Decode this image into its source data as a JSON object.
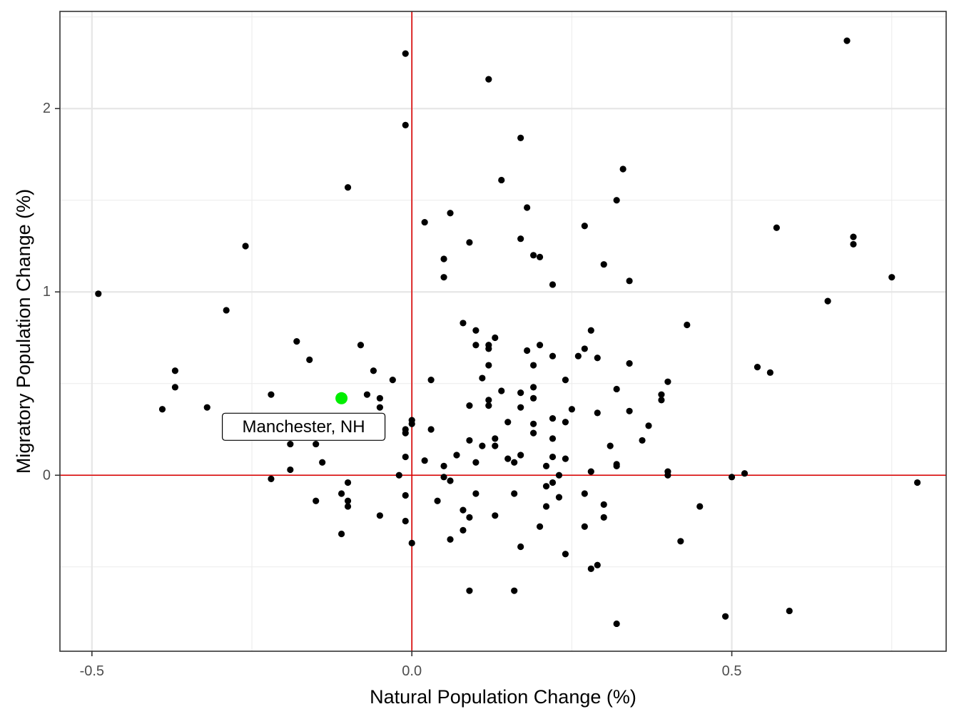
{
  "chart_data": {
    "type": "scatter",
    "xlabel": "Natural Population Change (%)",
    "ylabel": "Migratory Population Change (%)",
    "xlim": [
      -0.55,
      0.835
    ],
    "ylim": [
      -0.96,
      2.53
    ],
    "x_ticks": [
      -0.5,
      0.0,
      0.5
    ],
    "x_tick_labels": [
      "-0.5",
      "0.0",
      "0.5"
    ],
    "y_ticks": [
      0,
      1,
      2
    ],
    "y_tick_labels": [
      "0",
      "1",
      "2"
    ],
    "reference_lines": {
      "x": 0,
      "y": 0,
      "color": "#dd0000"
    },
    "grid": true,
    "points_color": "#000000",
    "highlight": {
      "label": "Manchester, NH",
      "x": -0.11,
      "y": 0.42,
      "color": "#00ee00"
    },
    "points": [
      [
        -0.49,
        0.99
      ],
      [
        -0.39,
        0.36
      ],
      [
        -0.37,
        0.57
      ],
      [
        -0.37,
        0.48
      ],
      [
        -0.32,
        0.37
      ],
      [
        -0.29,
        0.9
      ],
      [
        -0.26,
        1.25
      ],
      [
        -0.22,
        0.44
      ],
      [
        -0.22,
        -0.02
      ],
      [
        -0.19,
        0.17
      ],
      [
        -0.19,
        0.03
      ],
      [
        -0.18,
        0.73
      ],
      [
        -0.16,
        0.63
      ],
      [
        -0.15,
        0.17
      ],
      [
        -0.15,
        -0.14
      ],
      [
        -0.14,
        0.07
      ],
      [
        -0.11,
        -0.1
      ],
      [
        -0.11,
        -0.32
      ],
      [
        -0.1,
        1.57
      ],
      [
        -0.1,
        -0.04
      ],
      [
        -0.1,
        -0.14
      ],
      [
        -0.1,
        -0.17
      ],
      [
        -0.08,
        0.71
      ],
      [
        -0.07,
        0.44
      ],
      [
        -0.06,
        0.57
      ],
      [
        -0.05,
        0.42
      ],
      [
        -0.05,
        0.37
      ],
      [
        -0.05,
        -0.22
      ],
      [
        -0.03,
        0.52
      ],
      [
        -0.02,
        0.0
      ],
      [
        -0.01,
        2.3
      ],
      [
        -0.01,
        1.91
      ],
      [
        -0.01,
        0.25
      ],
      [
        -0.01,
        0.23
      ],
      [
        -0.01,
        0.1
      ],
      [
        -0.01,
        -0.11
      ],
      [
        -0.01,
        -0.25
      ],
      [
        0.0,
        0.3
      ],
      [
        0.0,
        0.28
      ],
      [
        0.0,
        -0.37
      ],
      [
        0.02,
        1.38
      ],
      [
        0.02,
        0.08
      ],
      [
        0.03,
        0.52
      ],
      [
        0.03,
        0.25
      ],
      [
        0.04,
        -0.14
      ],
      [
        0.05,
        1.18
      ],
      [
        0.05,
        1.08
      ],
      [
        0.05,
        0.05
      ],
      [
        0.05,
        -0.01
      ],
      [
        0.06,
        1.43
      ],
      [
        0.06,
        -0.03
      ],
      [
        0.06,
        -0.35
      ],
      [
        0.07,
        0.11
      ],
      [
        0.08,
        0.83
      ],
      [
        0.08,
        -0.19
      ],
      [
        0.08,
        -0.3
      ],
      [
        0.09,
        1.27
      ],
      [
        0.09,
        0.38
      ],
      [
        0.09,
        0.19
      ],
      [
        0.09,
        -0.23
      ],
      [
        0.09,
        -0.63
      ],
      [
        0.1,
        0.79
      ],
      [
        0.1,
        0.71
      ],
      [
        0.1,
        0.07
      ],
      [
        0.1,
        -0.1
      ],
      [
        0.11,
        0.53
      ],
      [
        0.11,
        0.16
      ],
      [
        0.12,
        0.71
      ],
      [
        0.12,
        0.69
      ],
      [
        0.12,
        0.6
      ],
      [
        0.12,
        0.41
      ],
      [
        0.12,
        0.38
      ],
      [
        0.12,
        2.16
      ],
      [
        0.13,
        0.75
      ],
      [
        0.13,
        0.2
      ],
      [
        0.13,
        0.16
      ],
      [
        0.13,
        -0.22
      ],
      [
        0.14,
        1.61
      ],
      [
        0.14,
        0.46
      ],
      [
        0.15,
        0.29
      ],
      [
        0.15,
        0.09
      ],
      [
        0.16,
        0.07
      ],
      [
        0.16,
        -0.1
      ],
      [
        0.16,
        -0.63
      ],
      [
        0.17,
        1.84
      ],
      [
        0.17,
        1.29
      ],
      [
        0.17,
        0.45
      ],
      [
        0.17,
        0.37
      ],
      [
        0.17,
        0.11
      ],
      [
        0.17,
        -0.39
      ],
      [
        0.18,
        1.46
      ],
      [
        0.18,
        0.68
      ],
      [
        0.19,
        1.2
      ],
      [
        0.19,
        0.6
      ],
      [
        0.19,
        0.48
      ],
      [
        0.19,
        0.42
      ],
      [
        0.19,
        0.28
      ],
      [
        0.19,
        0.23
      ],
      [
        0.2,
        1.19
      ],
      [
        0.2,
        0.71
      ],
      [
        0.2,
        -0.28
      ],
      [
        0.21,
        0.05
      ],
      [
        0.21,
        -0.06
      ],
      [
        0.21,
        -0.17
      ],
      [
        0.22,
        1.04
      ],
      [
        0.22,
        0.65
      ],
      [
        0.22,
        0.31
      ],
      [
        0.22,
        0.2
      ],
      [
        0.22,
        0.1
      ],
      [
        0.22,
        -0.04
      ],
      [
        0.23,
        0.0
      ],
      [
        0.23,
        -0.12
      ],
      [
        0.24,
        0.52
      ],
      [
        0.24,
        0.29
      ],
      [
        0.24,
        0.09
      ],
      [
        0.24,
        -0.43
      ],
      [
        0.25,
        0.36
      ],
      [
        0.26,
        0.65
      ],
      [
        0.27,
        1.36
      ],
      [
        0.27,
        0.69
      ],
      [
        0.27,
        -0.1
      ],
      [
        0.27,
        -0.28
      ],
      [
        0.28,
        0.79
      ],
      [
        0.28,
        0.02
      ],
      [
        0.28,
        -0.51
      ],
      [
        0.29,
        0.64
      ],
      [
        0.29,
        0.34
      ],
      [
        0.29,
        -0.49
      ],
      [
        0.3,
        1.15
      ],
      [
        0.3,
        -0.16
      ],
      [
        0.3,
        -0.23
      ],
      [
        0.31,
        0.16
      ],
      [
        0.32,
        1.5
      ],
      [
        0.32,
        0.47
      ],
      [
        0.32,
        0.06
      ],
      [
        0.32,
        0.05
      ],
      [
        0.32,
        -0.81
      ],
      [
        0.33,
        1.67
      ],
      [
        0.34,
        1.06
      ],
      [
        0.34,
        0.61
      ],
      [
        0.34,
        0.35
      ],
      [
        0.36,
        0.19
      ],
      [
        0.37,
        0.27
      ],
      [
        0.39,
        0.44
      ],
      [
        0.39,
        0.41
      ],
      [
        0.4,
        0.51
      ],
      [
        0.4,
        0.02
      ],
      [
        0.4,
        0.0
      ],
      [
        0.42,
        -0.36
      ],
      [
        0.43,
        0.82
      ],
      [
        0.45,
        -0.17
      ],
      [
        0.49,
        -0.77
      ],
      [
        0.5,
        -0.01
      ],
      [
        0.52,
        0.01
      ],
      [
        0.54,
        0.59
      ],
      [
        0.56,
        0.56
      ],
      [
        0.57,
        1.35
      ],
      [
        0.59,
        -0.74
      ],
      [
        0.65,
        0.95
      ],
      [
        0.68,
        2.37
      ],
      [
        0.69,
        1.3
      ],
      [
        0.69,
        1.26
      ],
      [
        0.75,
        1.08
      ],
      [
        0.79,
        -0.04
      ]
    ]
  }
}
